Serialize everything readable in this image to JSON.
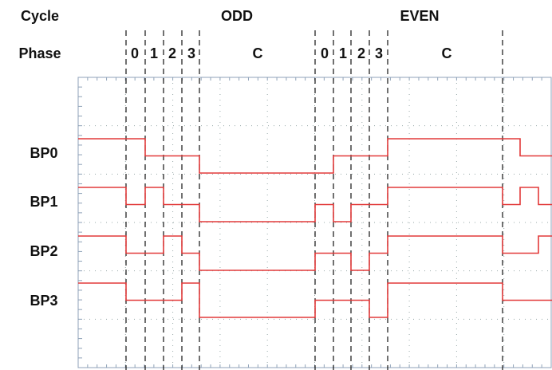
{
  "header": {
    "cycle_label": "Cycle",
    "phase_label": "Phase",
    "cycles": [
      "ODD",
      "EVEN"
    ],
    "phases": [
      [
        "0",
        "1",
        "2",
        "3",
        "C"
      ],
      [
        "0",
        "1",
        "2",
        "3",
        "C"
      ]
    ]
  },
  "signals": [
    "BP0",
    "BP1",
    "BP2",
    "BP3"
  ]
}
